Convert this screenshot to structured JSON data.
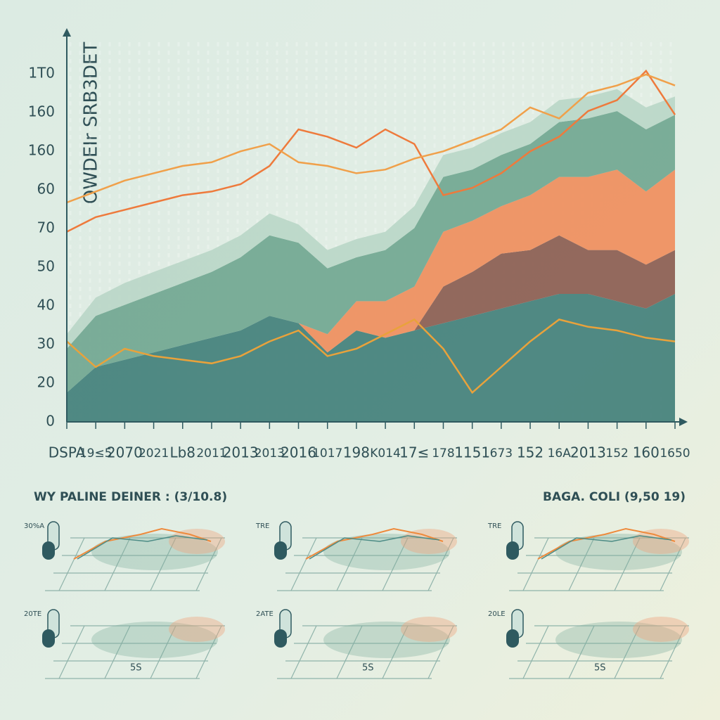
{
  "chart_data": {
    "type": "area",
    "title": "OWDEIr SRB3DET",
    "y_axis_labels": [
      "1T0",
      "160",
      "160",
      "60",
      "70",
      "50",
      "40",
      "30",
      "20",
      "0"
    ],
    "ylim": [
      0,
      100
    ],
    "categories": [
      "DSPA",
      "19≤5",
      "2070",
      "2021",
      "Lb8",
      "2011",
      "2013",
      "2013",
      "2016",
      "1017",
      "198",
      "K014",
      "17≤",
      "178",
      "1151",
      "673",
      "152",
      "16A",
      "2013",
      "152",
      "160",
      "1650"
    ],
    "series": [
      {
        "color": "#3f7d78",
        "values": [
          8,
          15,
          17,
          19,
          21,
          23,
          25,
          29,
          27,
          19,
          25,
          23,
          25,
          27,
          29,
          31,
          33,
          35,
          35,
          33,
          31,
          35
        ]
      },
      {
        "color": "#8a5a4e",
        "values": [
          0,
          0,
          0,
          0,
          0,
          0,
          0,
          0,
          0,
          0,
          0,
          0,
          0,
          10,
          12,
          15,
          14,
          16,
          12,
          14,
          12,
          12
        ]
      },
      {
        "color": "#f08c5a",
        "values": [
          0,
          0,
          0,
          0,
          0,
          0,
          0,
          0,
          0,
          5,
          8,
          10,
          12,
          15,
          14,
          13,
          15,
          16,
          20,
          22,
          20,
          22
        ]
      },
      {
        "color": "#6fa58f",
        "values": [
          12,
          14,
          15,
          16,
          17,
          18,
          20,
          22,
          22,
          18,
          12,
          14,
          16,
          15,
          14,
          14,
          14,
          15,
          16,
          16,
          17,
          15
        ]
      },
      {
        "color": "#b9d6c6",
        "values": [
          4,
          5,
          6,
          6,
          6,
          6,
          6,
          6,
          5,
          5,
          5,
          5,
          6,
          6,
          6,
          6,
          6,
          6,
          6,
          6,
          6,
          5
        ]
      }
    ],
    "line_series": [
      {
        "color": "#ee7a3c",
        "values": [
          52,
          56,
          58,
          60,
          62,
          63,
          65,
          70,
          80,
          78,
          75,
          80,
          76,
          62,
          64,
          68,
          74,
          78,
          85,
          88,
          96,
          84
        ]
      },
      {
        "color": "#f0a04a",
        "values": [
          60,
          63,
          66,
          68,
          70,
          71,
          74,
          76,
          71,
          70,
          68,
          69,
          72,
          74,
          77,
          80,
          86,
          83,
          90,
          92,
          95,
          92
        ]
      },
      {
        "color": "#e9a23b",
        "values": [
          22,
          15,
          20,
          18,
          17,
          16,
          18,
          22,
          25,
          18,
          20,
          24,
          28,
          20,
          8,
          15,
          22,
          28,
          26,
          25,
          23,
          22
        ]
      }
    ]
  },
  "panels_section": {
    "left_title": "WY PALINE DEINER : (3/10.8)",
    "right_title": "BAGA. COLI (9,50 19)",
    "panels": [
      {
        "label": "30%A"
      },
      {
        "label": "TRE"
      },
      {
        "label": "TRE"
      },
      {
        "label": "20TE",
        "note": "5S"
      },
      {
        "label": "2ATE",
        "note": "5S"
      },
      {
        "label": "20LE",
        "note": "5S"
      }
    ]
  }
}
